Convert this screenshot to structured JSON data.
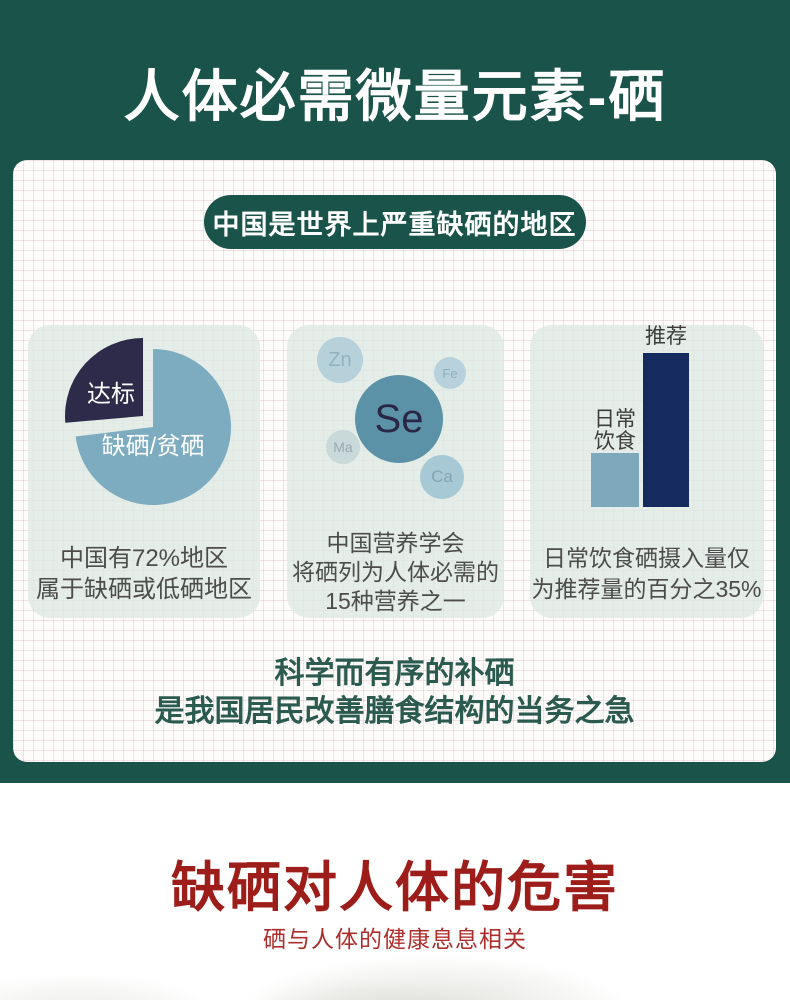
{
  "header": {
    "title": "人体必需微量元素-硒"
  },
  "panel": {
    "banner": "中国是世界上严重缺硒的地区",
    "statement": {
      "line1": "科学而有序的补硒",
      "line2": "是我国居民改善膳食结构的当务之急"
    }
  },
  "pie_card": {
    "slice_label_met": "达标",
    "slice_label_deficient": "缺硒/贫硒",
    "caption": {
      "line1": "中国有72%地区",
      "line2": "属于缺硒或低硒地区"
    }
  },
  "bubble_card": {
    "center": "Se",
    "zn": "Zn",
    "fe": "Fe",
    "ma": "Ma",
    "ca": "Ca",
    "caption": {
      "line1": "中国营养学会",
      "line2": "将硒列为人体必需的",
      "line3": "15种营养之一"
    }
  },
  "bar_card": {
    "daily_label": {
      "line1": "日常",
      "line2": "饮食"
    },
    "recommended_label": "推荐",
    "caption": {
      "line1": "日常饮食硒摄入量仅",
      "line2": "为推荐量的百分之35%"
    }
  },
  "harm_section": {
    "title": "缺硒对人体的危害",
    "subtitle": "硒与人体的健康息息相关"
  },
  "chart_data": [
    {
      "type": "pie",
      "slices": [
        {
          "label": "缺硒/贫硒",
          "value": 72,
          "color": "#7dabbf"
        },
        {
          "label": "达标",
          "value": 28,
          "color": "#2d2b49"
        }
      ],
      "caption": "中国有72%地区属于缺硒或低硒地区",
      "layout": "exploded-wedge-top-left"
    },
    {
      "type": "bubble",
      "center": "Se",
      "satellites": [
        "Zn",
        "Fe",
        "Ma",
        "Ca"
      ],
      "caption": "中国营养学会将硒列为人体必需的15种营养之一"
    },
    {
      "type": "bar",
      "categories": [
        "日常饮食",
        "推荐"
      ],
      "values": [
        35,
        100
      ],
      "colors": [
        "#7ea8bc",
        "#152a5e"
      ],
      "caption": "日常饮食硒摄入量仅为推荐量的百分之35%",
      "ylim": [
        0,
        100
      ]
    }
  ],
  "colors": {
    "theme_green": "#1a5349",
    "accent_navy": "#152a5e",
    "accent_blue": "#7dabbf",
    "harm_red": "#9d1d1a"
  }
}
